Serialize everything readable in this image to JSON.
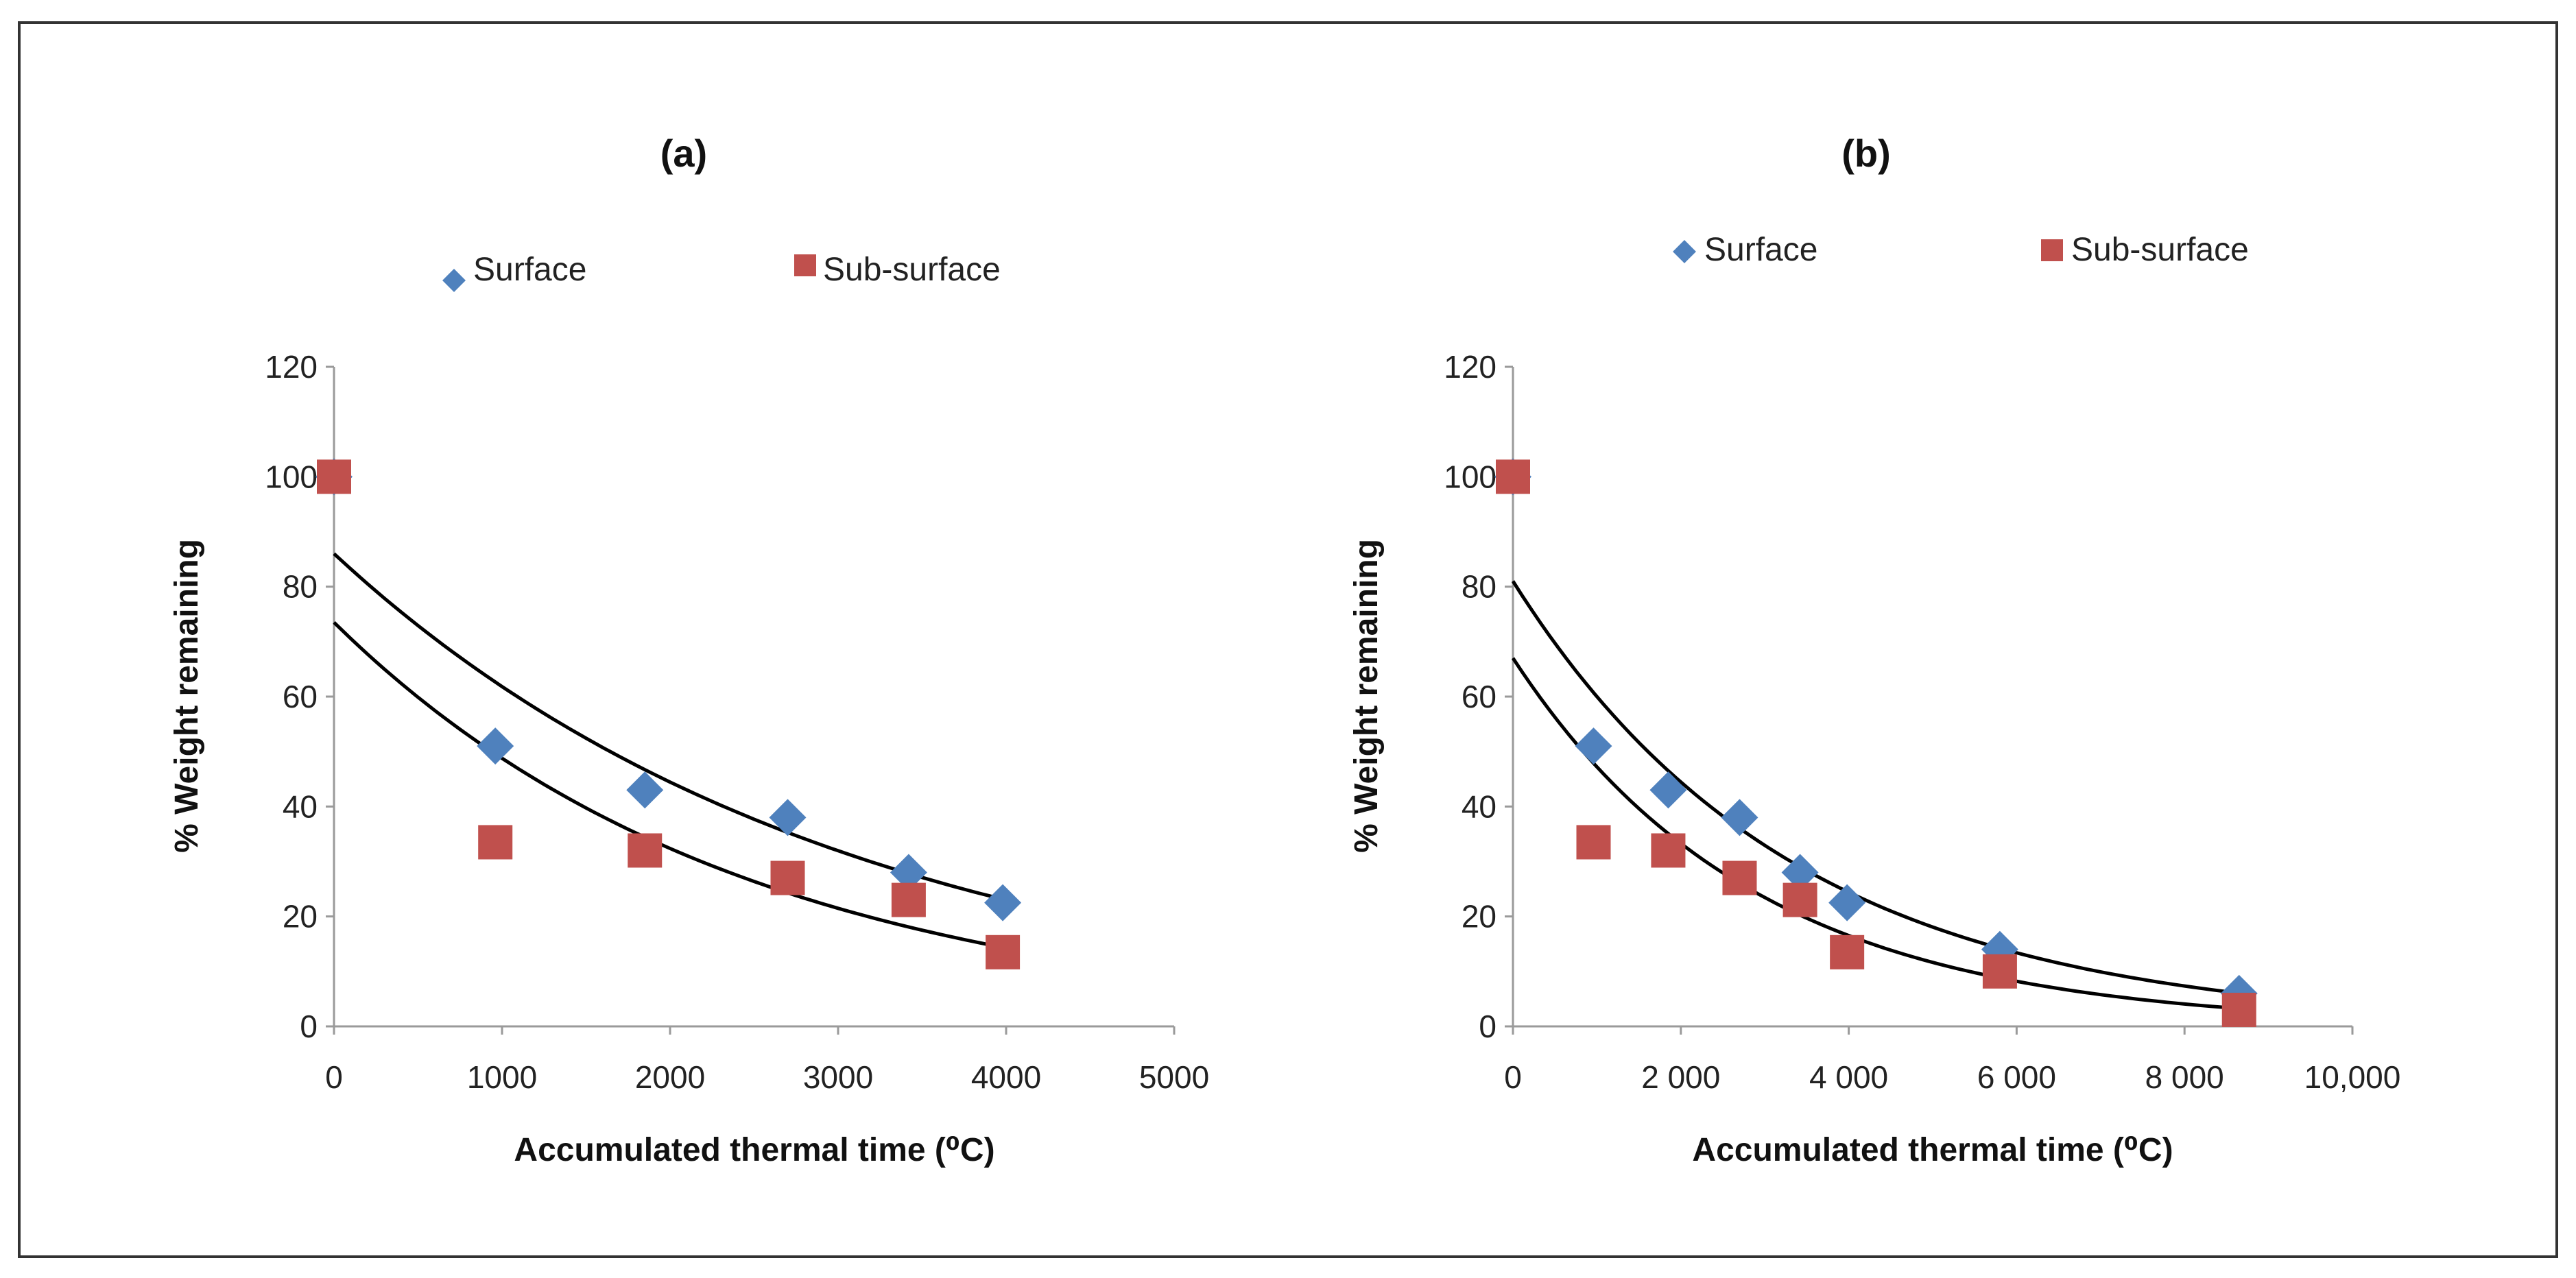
{
  "chart_data": [
    {
      "type": "scatter",
      "title": "(a)",
      "xlabel": "Accumulated thermal time (⁰C)",
      "ylabel": "% Weight remaining",
      "xlim": [
        0,
        5000
      ],
      "ylim": [
        0,
        120
      ],
      "xticks": [
        0,
        1000,
        2000,
        3000,
        4000,
        5000
      ],
      "xtick_labels": [
        "0",
        "1000",
        "2000",
        "3000",
        "4000",
        "5000"
      ],
      "yticks": [
        0,
        20,
        40,
        60,
        80,
        100,
        120
      ],
      "ytick_labels": [
        "0",
        "20",
        "40",
        "60",
        "80",
        "100",
        "120"
      ],
      "legend_position": "top",
      "series": [
        {
          "name": "Surface",
          "marker": "diamond",
          "color": "#4f81bd",
          "points": [
            [
              0,
              100
            ],
            [
              960,
              51
            ],
            [
              1850,
              43
            ],
            [
              2700,
              38
            ],
            [
              3420,
              28
            ],
            [
              3980,
              22.5
            ]
          ],
          "trendline": {
            "a": 86,
            "b": 0.00033,
            "x_range": [
              0,
              4000
            ],
            "color": "#000000"
          }
        },
        {
          "name": "Sub-surface",
          "marker": "square",
          "color": "#c0504d",
          "points": [
            [
              0,
              100
            ],
            [
              960,
              33.5
            ],
            [
              1850,
              32
            ],
            [
              2700,
              27
            ],
            [
              3420,
              23
            ],
            [
              3980,
              13.5
            ]
          ],
          "trendline": {
            "a": 73.5,
            "b": 0.00041,
            "x_range": [
              0,
              4000
            ],
            "color": "#000000"
          }
        }
      ]
    },
    {
      "type": "scatter",
      "title": "(b)",
      "xlabel": "Accumulated thermal time (⁰C)",
      "ylabel": "% Weight remaining",
      "xlim": [
        0,
        10000
      ],
      "ylim": [
        0,
        120
      ],
      "xticks": [
        0,
        2000,
        4000,
        6000,
        8000,
        10000
      ],
      "xtick_labels": [
        "0",
        "2 000",
        "4 000",
        "6 000",
        "8 000",
        "10,000"
      ],
      "yticks": [
        0,
        20,
        40,
        60,
        80,
        100,
        120
      ],
      "ytick_labels": [
        "0",
        "20",
        "40",
        "60",
        "80",
        "100",
        "120"
      ],
      "legend_position": "top",
      "series": [
        {
          "name": "Surface",
          "marker": "diamond",
          "color": "#4f81bd",
          "points": [
            [
              0,
              100
            ],
            [
              960,
              51
            ],
            [
              1850,
              43
            ],
            [
              2700,
              38
            ],
            [
              3420,
              28
            ],
            [
              3980,
              22.5
            ],
            [
              5800,
              14
            ],
            [
              8650,
              6
            ]
          ],
          "trendline": {
            "a": 81,
            "b": 0.0003,
            "x_range": [
              0,
              8650
            ],
            "color": "#000000"
          }
        },
        {
          "name": "Sub-surface",
          "marker": "square",
          "color": "#c0504d",
          "points": [
            [
              0,
              100
            ],
            [
              960,
              33.5
            ],
            [
              1850,
              32
            ],
            [
              2700,
              27
            ],
            [
              3420,
              23
            ],
            [
              3980,
              13.5
            ],
            [
              5800,
              10
            ],
            [
              8650,
              3
            ]
          ],
          "trendline": {
            "a": 67,
            "b": 0.00035,
            "x_range": [
              0,
              8650
            ],
            "color": "#000000"
          }
        }
      ]
    }
  ]
}
